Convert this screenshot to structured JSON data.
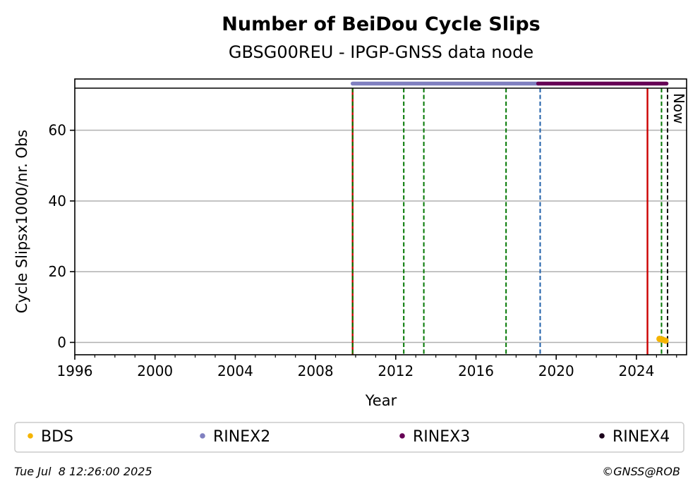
{
  "chart_data": {
    "type": "scatter",
    "title": "Number of BeiDou Cycle Slips",
    "subtitle": "GBSG00REU - IPGP-GNSS data node",
    "xlabel": "Year",
    "ylabel": "Cycle Slipsx1000/nr. Obs",
    "xlim": [
      1996,
      2026.5
    ],
    "ylim": [
      -3.5,
      74.5
    ],
    "x_ticks": [
      1996,
      2000,
      2004,
      2008,
      2012,
      2016,
      2020,
      2024
    ],
    "x_tick_labels": [
      "1996",
      "2000",
      "2004",
      "2008",
      "2012",
      "2016",
      "2020",
      "2024"
    ],
    "y_ticks": [
      0,
      20,
      40,
      60
    ],
    "y_tick_labels": [
      "0",
      "20",
      "40",
      "60"
    ],
    "grid": "horizontal",
    "legend_placement": "bottom",
    "series": [
      {
        "name": "BDS",
        "color": "#f5b400",
        "points": [
          [
            2025.15,
            1.0
          ],
          [
            2025.3,
            0.8
          ],
          [
            2025.45,
            0.5
          ]
        ]
      },
      {
        "name": "RINEX2",
        "color": "#8080c0",
        "range": [
          2009.85,
          2019.1
        ]
      },
      {
        "name": "RINEX3",
        "color": "#660055",
        "range": [
          2019.1,
          2025.5
        ]
      },
      {
        "name": "RINEX4",
        "color": "#1a001a",
        "range": []
      }
    ],
    "vertical_lines": [
      {
        "x": 2009.85,
        "color": "#cc0000",
        "style": "solid"
      },
      {
        "x": 2009.85,
        "color": "#007700",
        "style": "dashed"
      },
      {
        "x": 2012.4,
        "color": "#007700",
        "style": "dashed"
      },
      {
        "x": 2013.4,
        "color": "#007700",
        "style": "dashed"
      },
      {
        "x": 2017.5,
        "color": "#007700",
        "style": "dashed"
      },
      {
        "x": 2019.2,
        "color": "#1f5fa8",
        "style": "dashed"
      },
      {
        "x": 2024.55,
        "color": "#cc0000",
        "style": "solid"
      },
      {
        "x": 2025.25,
        "color": "#007700",
        "style": "dashed"
      },
      {
        "x": 2025.55,
        "color": "#000000",
        "style": "dashed",
        "label": "Now"
      }
    ]
  },
  "footer": {
    "timestamp": "Tue Jul  8 12:26:00 2025",
    "credit": "©GNSS@ROB"
  }
}
